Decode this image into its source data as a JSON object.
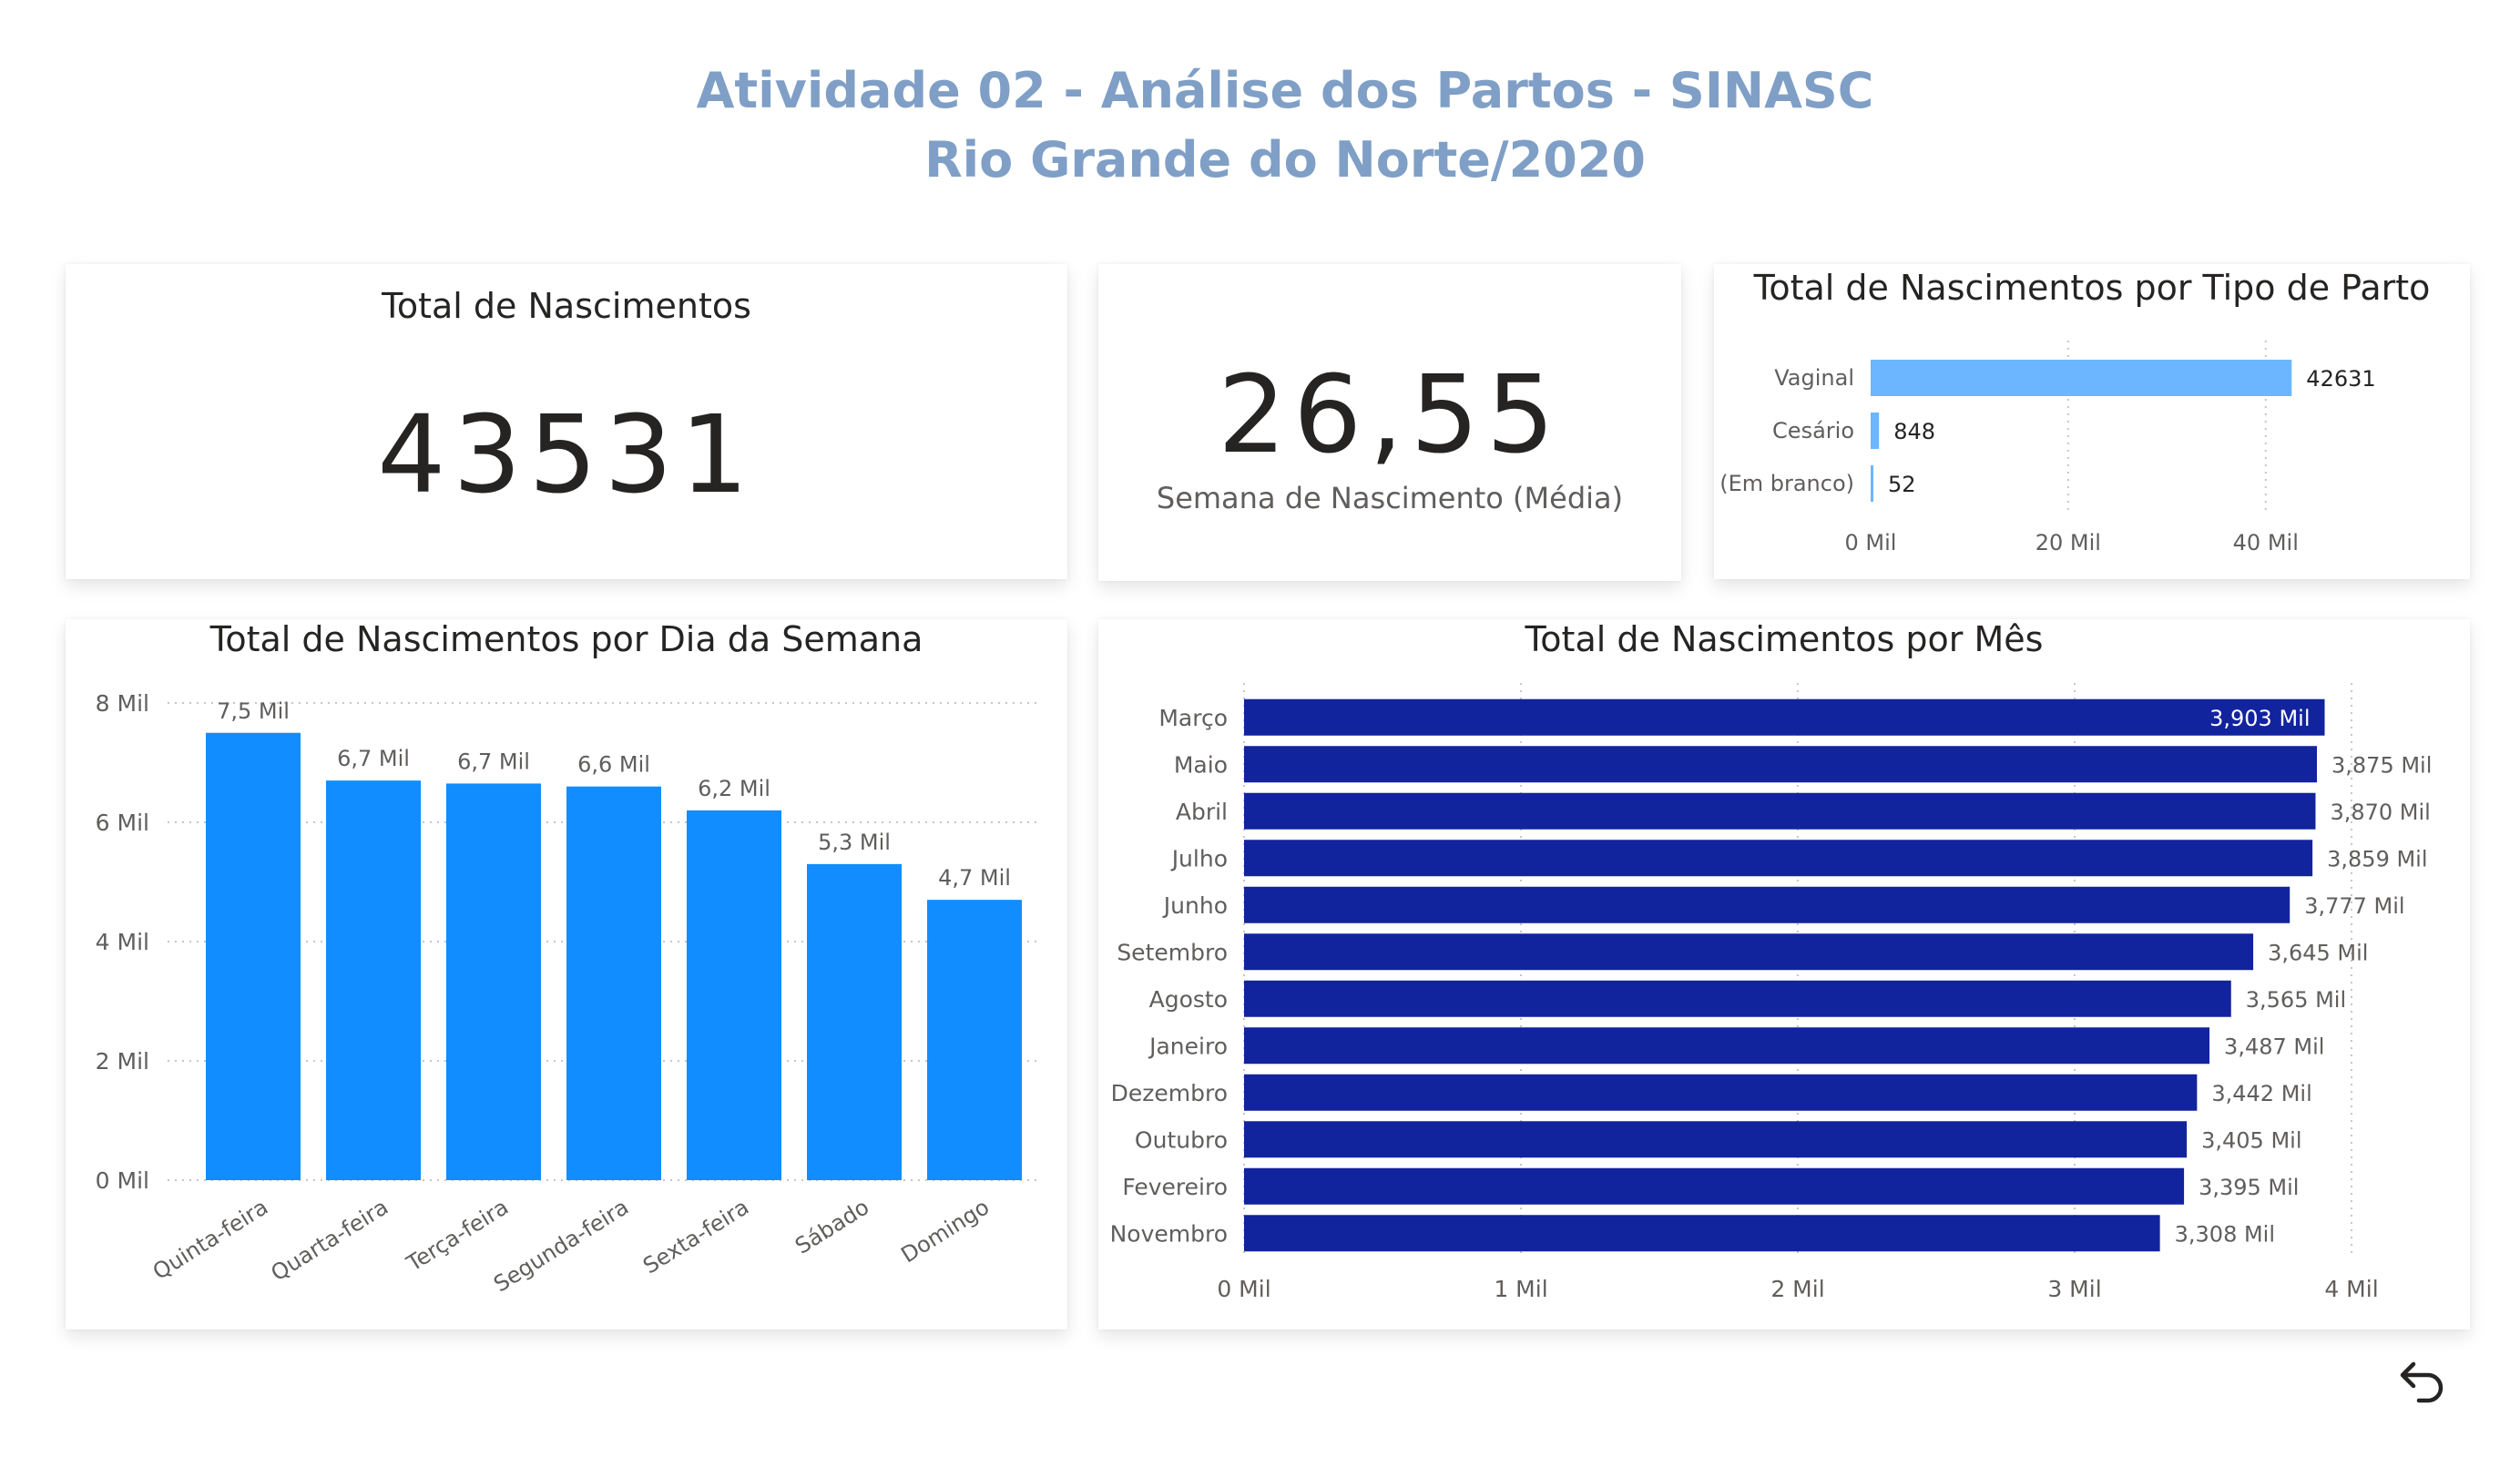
{
  "header": {
    "title_line1": "Atividade 02 - Análise dos Partos - SINASC",
    "title_line2": "Rio Grande do Norte/2020"
  },
  "card_total": {
    "title": "Total de Nascimentos",
    "value": "43531"
  },
  "card_semana": {
    "value": "26,55",
    "label": "Semana de Nascimento (Média)"
  },
  "colors": {
    "title": "#7f9fc6",
    "tipo_parto_bar": "#6bb6ff",
    "dia_semana_bar": "#118dff",
    "mes_bar": "#12239e"
  },
  "icons": {
    "back": "undo-arrow-icon"
  },
  "chart_data": [
    {
      "id": "tipo_parto",
      "type": "bar",
      "orientation": "horizontal",
      "title": "Total de Nascimentos por Tipo de Parto",
      "categories": [
        "Vaginal",
        "Cesário",
        "(Em branco)"
      ],
      "values": [
        42631,
        848,
        52
      ],
      "value_labels": [
        "42631",
        "848",
        "52"
      ],
      "xlim": [
        0,
        45000
      ],
      "xticks": [
        0,
        20000,
        40000
      ],
      "xtick_labels": [
        "0 Mil",
        "20 Mil",
        "40 Mil"
      ],
      "grid": true
    },
    {
      "id": "dia_semana",
      "type": "bar",
      "orientation": "vertical",
      "title": "Total de Nascimentos por Dia da Semana",
      "categories": [
        "Quinta-feira",
        "Quarta-feira",
        "Terça-feira",
        "Segunda-feira",
        "Sexta-feira",
        "Sábado",
        "Domingo"
      ],
      "values": [
        7500,
        6700,
        6650,
        6600,
        6200,
        5300,
        4700
      ],
      "value_labels": [
        "7,5 Mil",
        "6,7 Mil",
        "6,7 Mil",
        "6,6 Mil",
        "6,2 Mil",
        "5,3 Mil",
        "4,7 Mil"
      ],
      "ylim": [
        0,
        8000
      ],
      "yticks": [
        0,
        2000,
        4000,
        6000,
        8000
      ],
      "ytick_labels": [
        "0 Mil",
        "2 Mil",
        "4 Mil",
        "6 Mil",
        "8 Mil"
      ],
      "grid": true
    },
    {
      "id": "mes",
      "type": "bar",
      "orientation": "horizontal",
      "title": "Total de Nascimentos por Mês",
      "categories": [
        "Março",
        "Maio",
        "Abril",
        "Julho",
        "Junho",
        "Setembro",
        "Agosto",
        "Janeiro",
        "Dezembro",
        "Outubro",
        "Fevereiro",
        "Novembro"
      ],
      "values": [
        3903,
        3875,
        3870,
        3859,
        3777,
        3645,
        3565,
        3487,
        3442,
        3405,
        3395,
        3308
      ],
      "value_labels": [
        "3,903 Mil",
        "3,875 Mil",
        "3,870 Mil",
        "3,859 Mil",
        "3,777 Mil",
        "3,645 Mil",
        "3,565 Mil",
        "3,487 Mil",
        "3,442 Mil",
        "3,405 Mil",
        "3,395 Mil",
        "3,308 Mil"
      ],
      "xlim": [
        0,
        4000
      ],
      "xticks": [
        0,
        1000,
        2000,
        3000,
        4000
      ],
      "xtick_labels": [
        "0 Mil",
        "1 Mil",
        "2 Mil",
        "3 Mil",
        "4 Mil"
      ],
      "grid": true
    }
  ]
}
